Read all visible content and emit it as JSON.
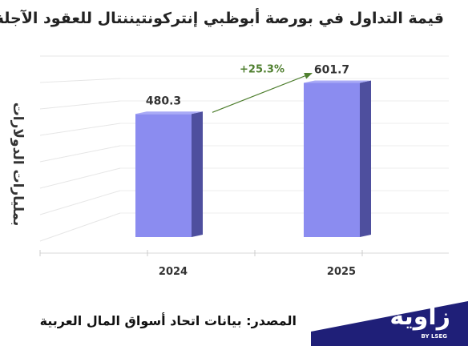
{
  "header": {
    "title": "قيمة التداول في  بورصة أبوظبي إنتركونتيننتال للعقود الآجلة"
  },
  "footer": {
    "source": "المصدر: بيانات اتحاد أسواق المال العربية",
    "logo_text": "زاوية",
    "logo_sub": "BY LSEG"
  },
  "colors": {
    "bar_front": "#8b8cf0",
    "bar_side": "#4e4f9e",
    "arrow": "#4f7f2f",
    "growth_text": "#4f7f2f",
    "logo_bg": "#1f1f78"
  },
  "chart_data": {
    "type": "bar",
    "title": "قيمة التداول في  بورصة أبوظبي إنتركونتيننتال للعقود الآجلة",
    "xlabel": "",
    "ylabel": "بمليارات الدولارات",
    "categories": [
      "2024",
      "2025"
    ],
    "values": [
      480.3,
      601.7
    ],
    "value_labels": [
      "480.3",
      "601.7"
    ],
    "ylim": [
      0,
      700
    ],
    "grid": true,
    "annotations": [
      {
        "text": "+25.3%",
        "from": "2024",
        "to": "2025"
      }
    ]
  }
}
